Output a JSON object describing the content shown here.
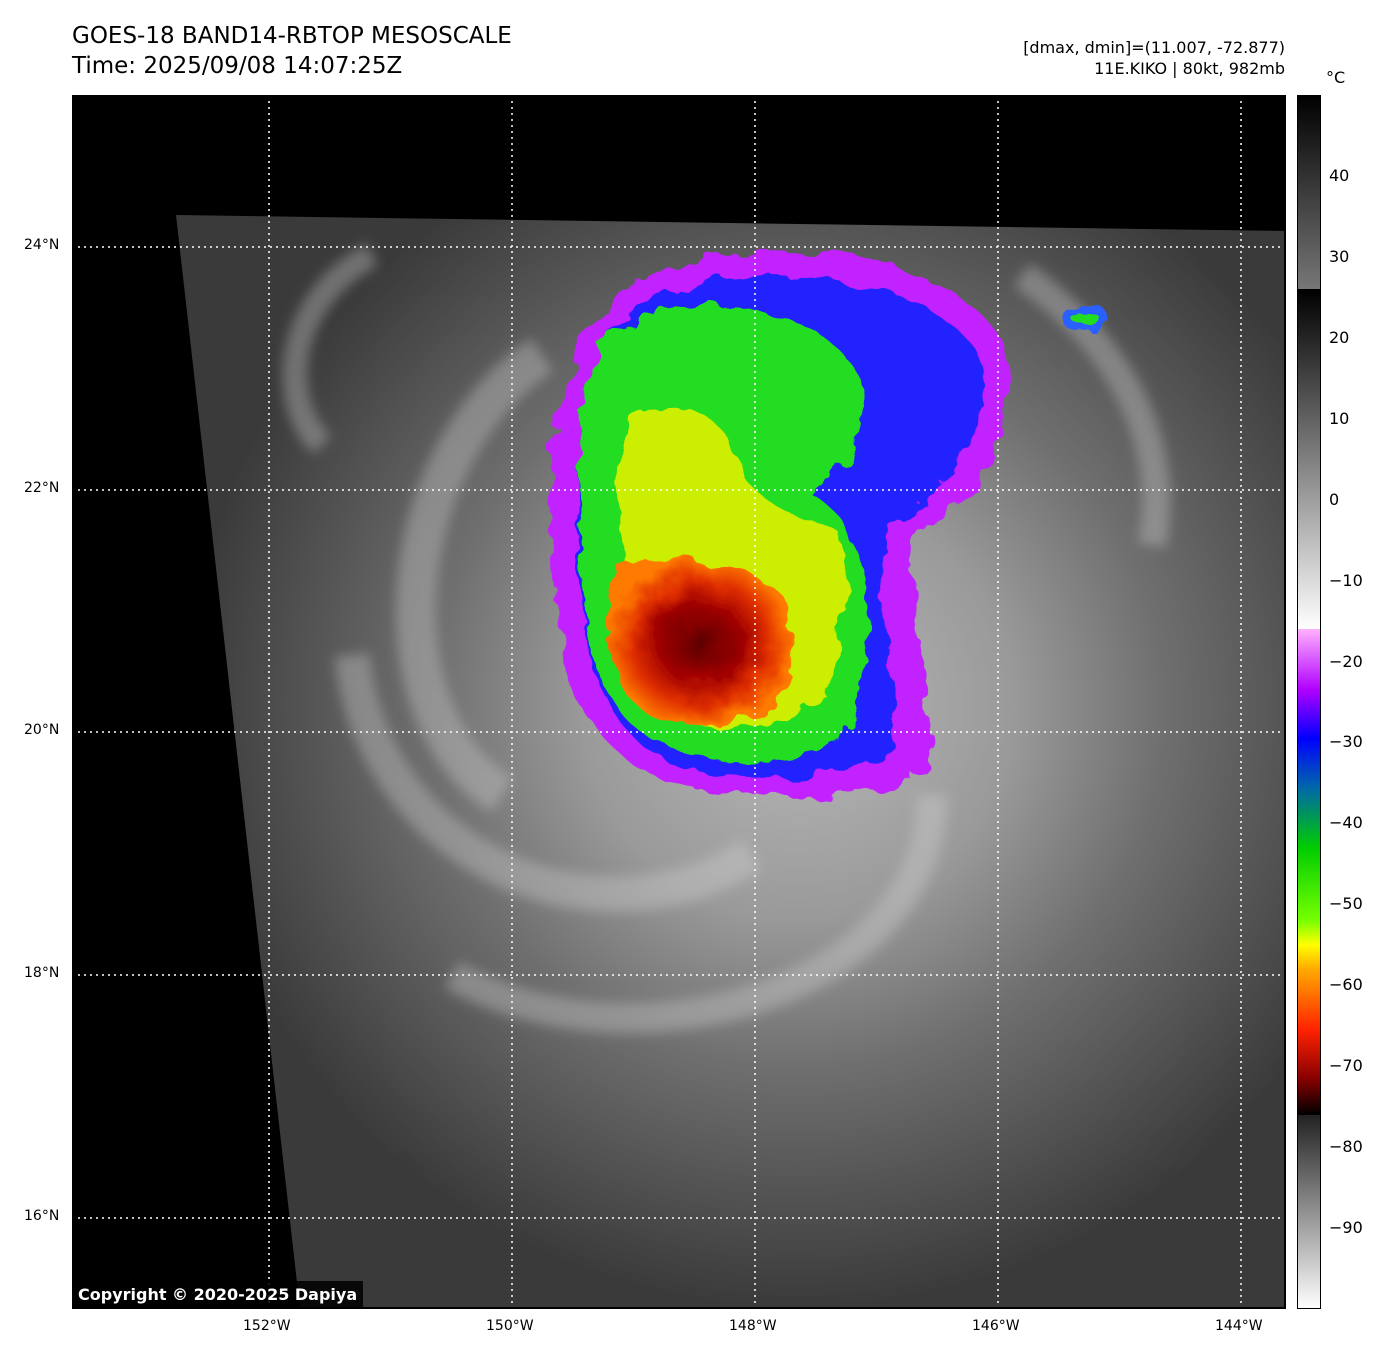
{
  "header": {
    "title_line1": "GOES-18 BAND14-RBTOP MESOSCALE",
    "title_line2": "Time: 2025/09/08 14:07:25Z",
    "info_line1": "[dmax, dmin]=(11.007, -72.877)",
    "info_line2": "11E.KIKO | 80kt, 982mb"
  },
  "axes": {
    "lon_labels": [
      "152°W",
      "150°W",
      "148°W",
      "146°W",
      "144°W"
    ],
    "lat_labels": [
      "24°N",
      "22°N",
      "20°N",
      "18°N",
      "16°N"
    ],
    "grid": "dotted white lines"
  },
  "colorbar": {
    "unit": "°C",
    "ticks": [
      "40",
      "30",
      "20",
      "10",
      "0",
      "−10",
      "−20",
      "−30",
      "−40",
      "−50",
      "−60",
      "−70",
      "−80",
      "−90"
    ],
    "tick_values": [
      40,
      30,
      20,
      10,
      0,
      -10,
      -20,
      -30,
      -40,
      -50,
      -60,
      -70,
      -80,
      -90
    ],
    "range": [
      -100,
      50
    ]
  },
  "map": {
    "storm": "11E.KIKO",
    "extent_lon": [
      -153.6,
      -143.6
    ],
    "extent_lat": [
      15.3,
      25.3
    ],
    "colors": {
      "cold_top": "#8a0000",
      "green": "#22dd22",
      "blue": "#2222ff",
      "purple": "#cc22ff",
      "no_data": "#000000"
    }
  },
  "copyright": "Copyright © 2020-2025 Dapiya"
}
